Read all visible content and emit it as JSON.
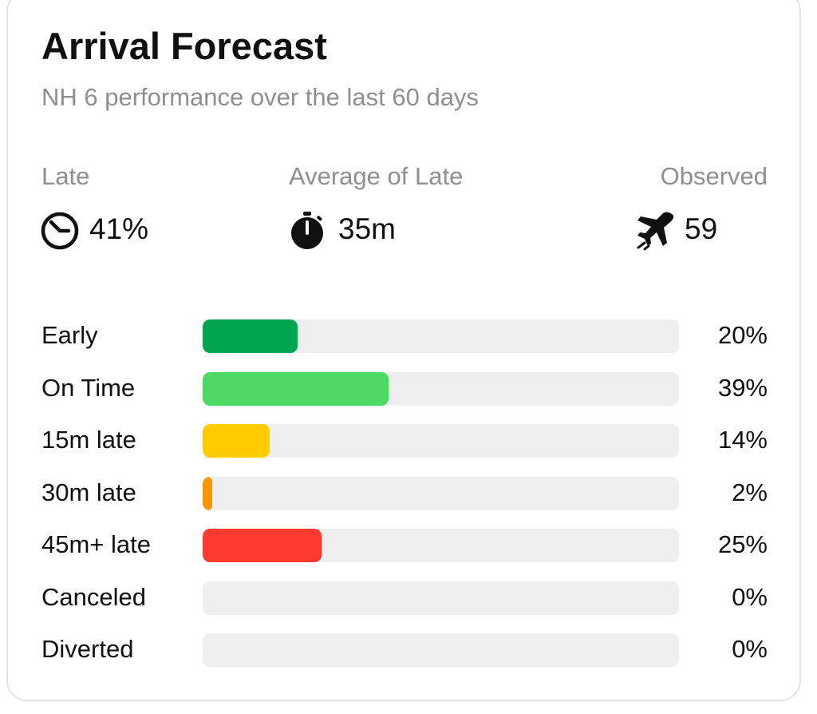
{
  "header": {
    "title": "Arrival Forecast",
    "subtitle": "NH 6 performance over the last 60 days"
  },
  "stats": [
    {
      "label": "Late",
      "value": "41%"
    },
    {
      "label": "Average of Late",
      "value": "35m"
    },
    {
      "label": "Observed",
      "value": "59"
    }
  ],
  "distribution": {
    "xlim": [
      0,
      100
    ],
    "rows": [
      {
        "label": "Early",
        "value": 20,
        "value_label": "20%",
        "color": "#00a550"
      },
      {
        "label": "On Time",
        "value": 39,
        "value_label": "39%",
        "color": "#4cd964"
      },
      {
        "label": "15m late",
        "value": 14,
        "value_label": "14%",
        "color": "#ffcc00"
      },
      {
        "label": "30m late",
        "value": 2,
        "value_label": "2%",
        "color": "#ff9500"
      },
      {
        "label": "45m+ late",
        "value": 25,
        "value_label": "25%",
        "color": "#ff3b30"
      },
      {
        "label": "Canceled",
        "value": 0,
        "value_label": "0%",
        "color": "#8e8e93"
      },
      {
        "label": "Diverted",
        "value": 0,
        "value_label": "0%",
        "color": "#8e8e93"
      }
    ]
  }
}
